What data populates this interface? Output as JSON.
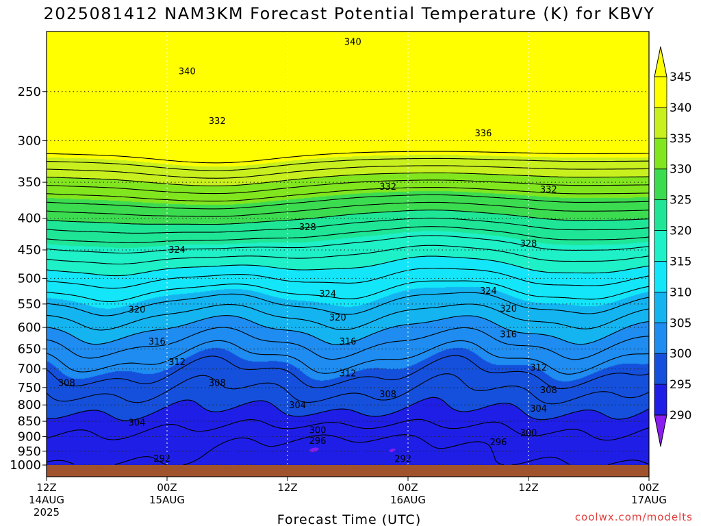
{
  "chart_data": {
    "type": "heatmap",
    "title": "2025081412 NAM3KM Forecast Potential Temperature (K) for KBVY",
    "xlabel": "Forecast Time (UTC)",
    "ylabel": "",
    "credit": "coolwx.com/modelts",
    "x_ticks": [
      {
        "hour": 0,
        "label": "12Z",
        "sub1": "14AUG",
        "sub2": "2025"
      },
      {
        "hour": 12,
        "label": "00Z",
        "sub1": "15AUG",
        "sub2": ""
      },
      {
        "hour": 24,
        "label": "12Z",
        "sub1": "",
        "sub2": ""
      },
      {
        "hour": 36,
        "label": "00Z",
        "sub1": "16AUG",
        "sub2": ""
      },
      {
        "hour": 48,
        "label": "12Z",
        "sub1": "",
        "sub2": ""
      },
      {
        "hour": 60,
        "label": "00Z",
        "sub1": "17AUG",
        "sub2": ""
      }
    ],
    "xlim_hours": [
      0,
      60
    ],
    "y_ticks": [
      250,
      300,
      350,
      400,
      450,
      500,
      550,
      600,
      650,
      700,
      750,
      800,
      850,
      900,
      950,
      1000
    ],
    "ylim_hPa": [
      200,
      1000
    ],
    "y_scale": "log-pressure",
    "grid": "dotted",
    "colorbar": {
      "levels": [
        290,
        295,
        300,
        305,
        310,
        315,
        320,
        325,
        330,
        335,
        340,
        345
      ],
      "colors": [
        "#8a1ef0",
        "#1e1ee6",
        "#1450dc",
        "#1e8cf0",
        "#14b4f0",
        "#14e6fa",
        "#1ef0c8",
        "#1ee696",
        "#3cdc50",
        "#82e61e",
        "#c8f01e",
        "#ffff00"
      ],
      "placement": "right"
    },
    "contours": [
      {
        "value": 292,
        "labels": [
          {
            "hour": 11.5,
            "hPa": 977
          },
          {
            "hour": 35.5,
            "hPa": 978
          }
        ]
      },
      {
        "value": 296,
        "labels": [
          {
            "hour": 27,
            "hPa": 915
          },
          {
            "hour": 45,
            "hPa": 920
          }
        ]
      },
      {
        "value": 300,
        "labels": [
          {
            "hour": 27,
            "hPa": 880
          },
          {
            "hour": 48,
            "hPa": 888
          }
        ]
      },
      {
        "value": 304,
        "labels": [
          {
            "hour": 9,
            "hPa": 855
          },
          {
            "hour": 25,
            "hPa": 802
          },
          {
            "hour": 49,
            "hPa": 812
          }
        ]
      },
      {
        "value": 308,
        "labels": [
          {
            "hour": 2,
            "hPa": 738
          },
          {
            "hour": 17,
            "hPa": 738
          },
          {
            "hour": 34,
            "hPa": 770
          },
          {
            "hour": 50,
            "hPa": 758
          }
        ]
      },
      {
        "value": 312,
        "labels": [
          {
            "hour": 13,
            "hPa": 683
          },
          {
            "hour": 30,
            "hPa": 712
          },
          {
            "hour": 49,
            "hPa": 697
          }
        ]
      },
      {
        "value": 316,
        "labels": [
          {
            "hour": 11,
            "hPa": 633
          },
          {
            "hour": 30,
            "hPa": 633
          },
          {
            "hour": 46,
            "hPa": 616
          }
        ]
      },
      {
        "value": 320,
        "labels": [
          {
            "hour": 9,
            "hPa": 562
          },
          {
            "hour": 29,
            "hPa": 579
          },
          {
            "hour": 46,
            "hPa": 560
          }
        ]
      },
      {
        "value": 324,
        "labels": [
          {
            "hour": 13,
            "hPa": 450
          },
          {
            "hour": 28,
            "hPa": 530
          },
          {
            "hour": 44,
            "hPa": 524
          }
        ]
      },
      {
        "value": 328,
        "labels": [
          {
            "hour": 26,
            "hPa": 414
          },
          {
            "hour": 48,
            "hPa": 440
          }
        ]
      },
      {
        "value": 332,
        "labels": [
          {
            "hour": 17,
            "hPa": 279
          },
          {
            "hour": 34,
            "hPa": 356
          },
          {
            "hour": 50,
            "hPa": 360
          }
        ]
      },
      {
        "value": 336,
        "labels": [
          {
            "hour": 43.5,
            "hPa": 292
          }
        ]
      },
      {
        "value": 340,
        "labels": [
          {
            "hour": 14,
            "hPa": 232
          },
          {
            "hour": 30.5,
            "hPa": 208
          }
        ]
      }
    ]
  }
}
